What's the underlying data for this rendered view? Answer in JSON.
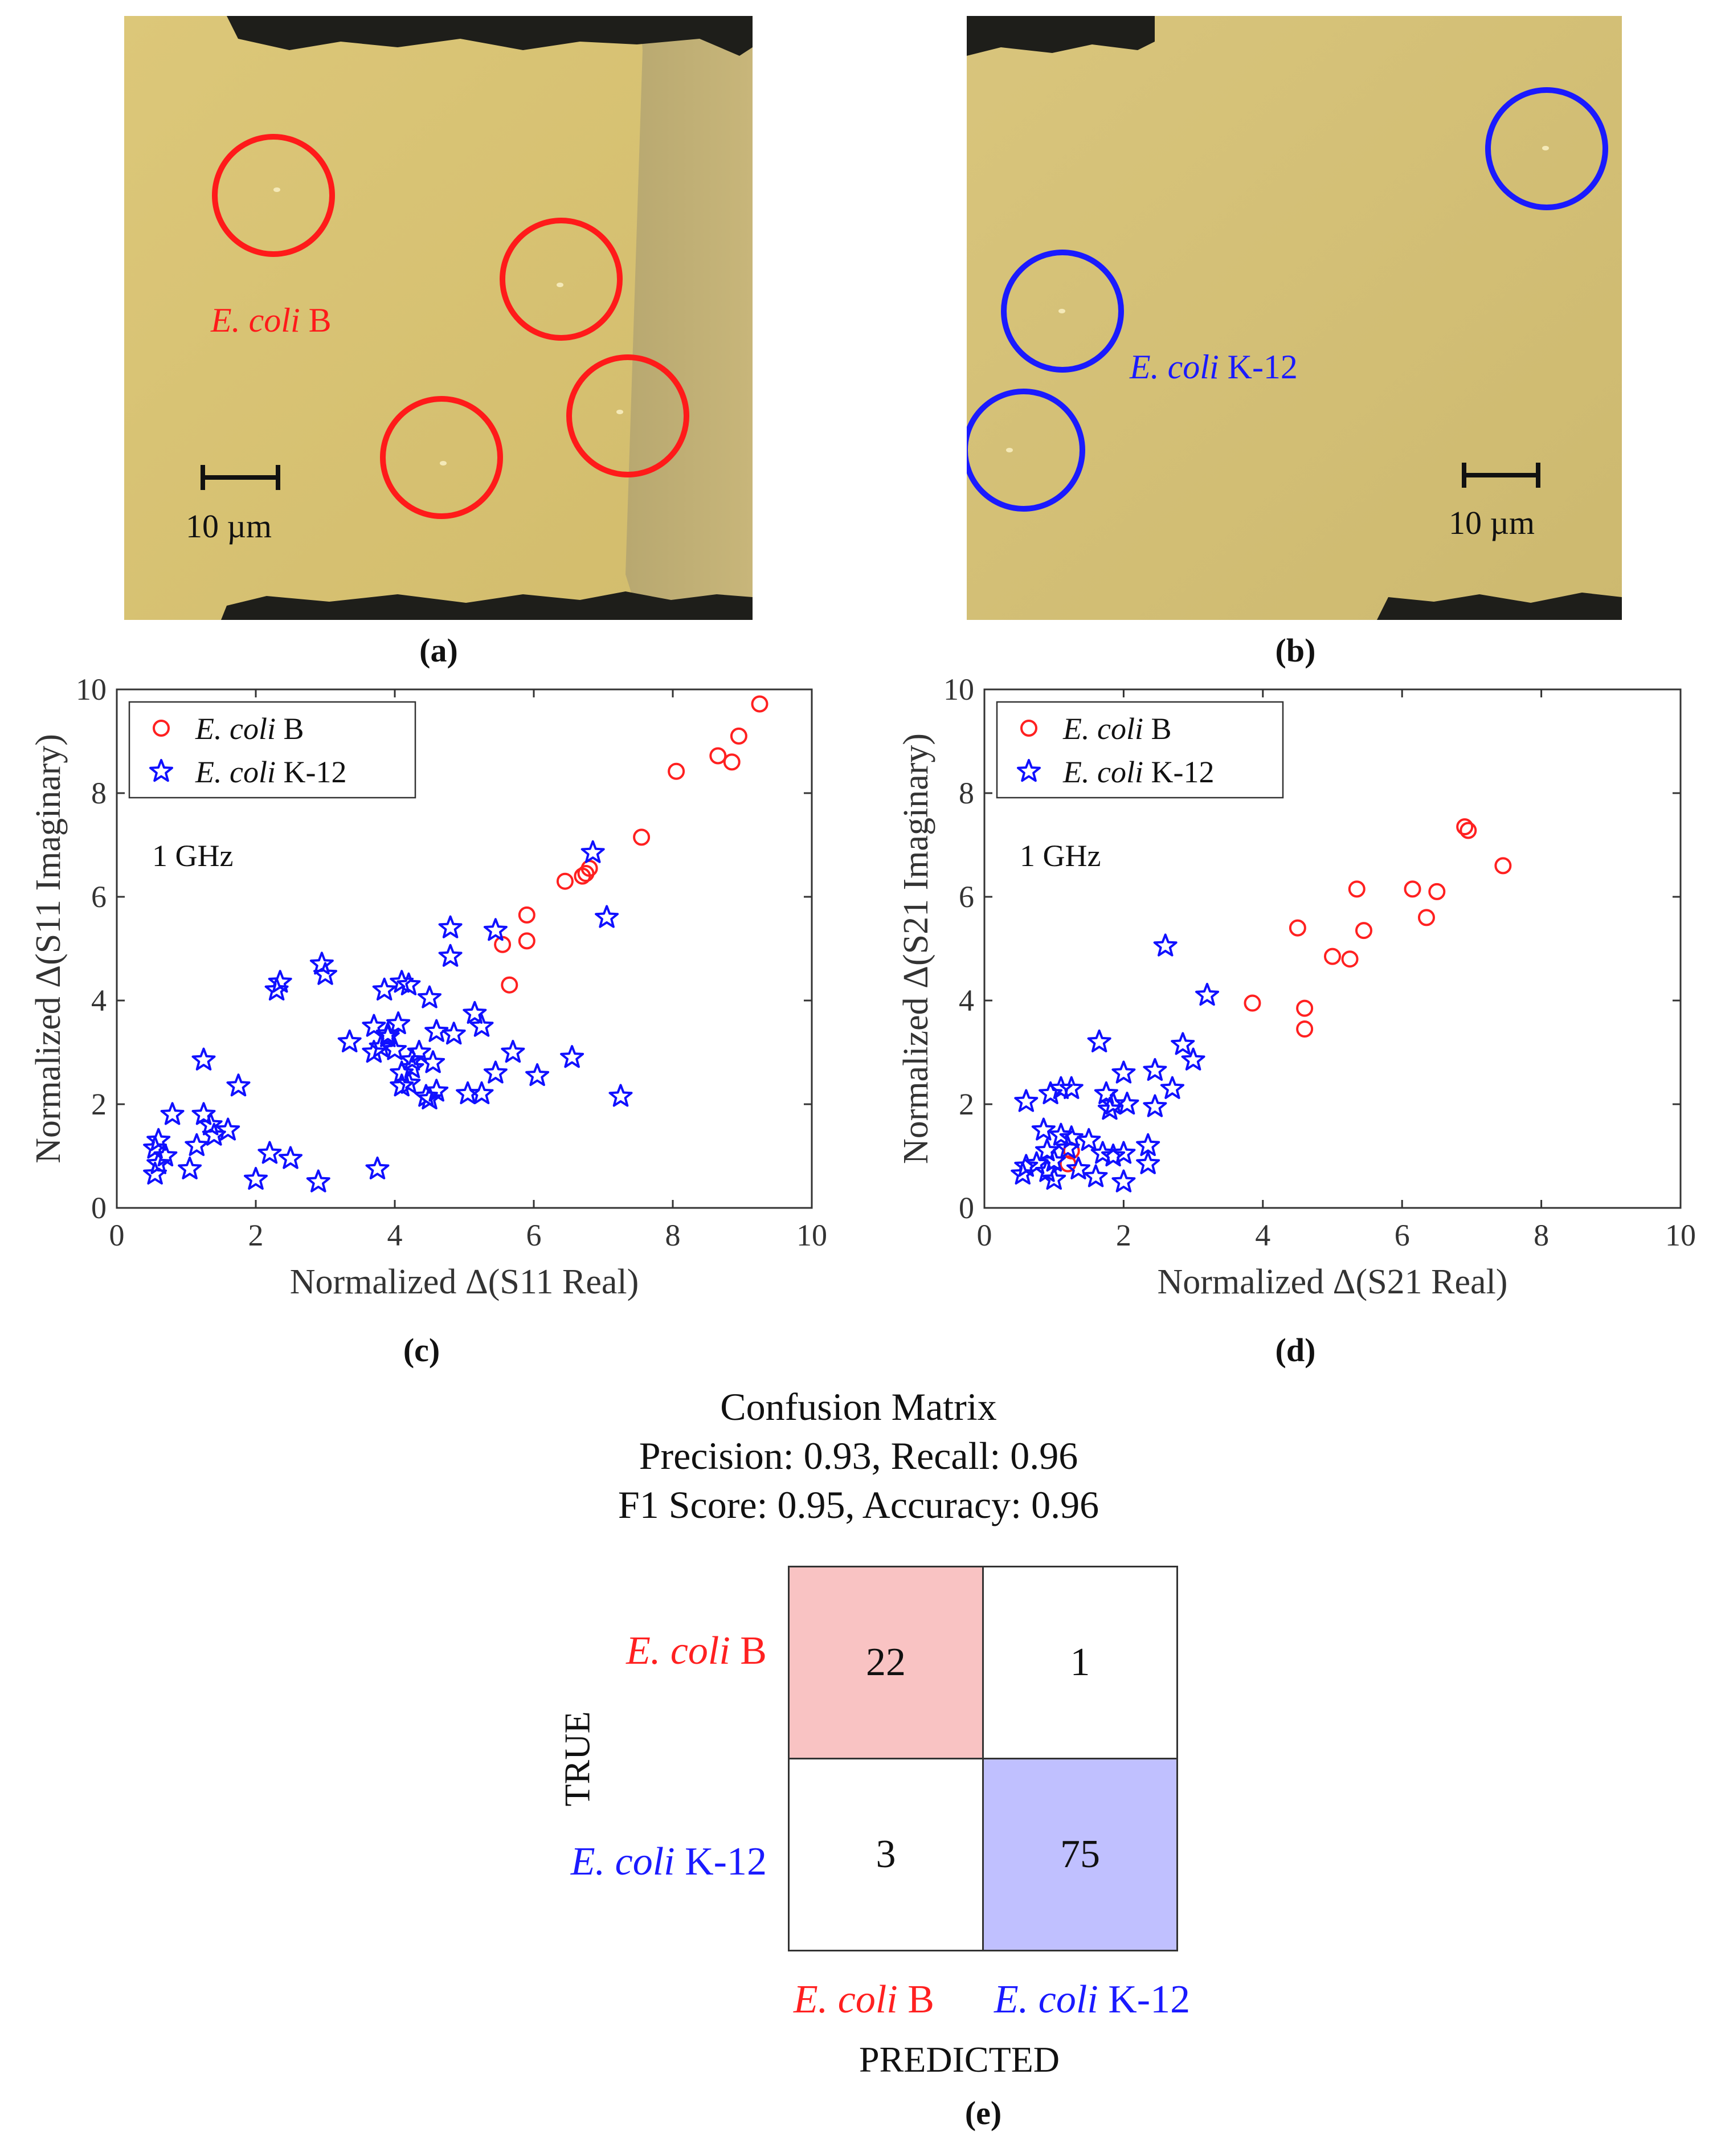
{
  "panels": {
    "a": {
      "caption": "(a)",
      "label_italic": "E. coli",
      "label_rest": " B",
      "scale_text": "10 µm",
      "circle_color": "#ff1a1a"
    },
    "b": {
      "caption": "(b)",
      "label_italic": "E. coli",
      "label_rest": " K-12",
      "scale_text": "10 µm",
      "circle_color": "#1a1aff"
    },
    "c": {
      "caption": "(c)"
    },
    "d": {
      "caption": "(d)"
    },
    "e": {
      "caption": "(e)"
    }
  },
  "chart_data": [
    {
      "id": "c",
      "type": "scatter",
      "xlabel": "Normalized Δ(S11 Real)",
      "ylabel": "Normalized Δ(S11 Imaginary)",
      "annotation": "1 GHz",
      "xlim": [
        0,
        10
      ],
      "ylim": [
        0,
        10
      ],
      "xticks": [
        0,
        2,
        4,
        6,
        8,
        10
      ],
      "yticks": [
        0,
        2,
        4,
        6,
        8,
        10
      ],
      "legend": {
        "position": "top-left",
        "entries": [
          {
            "italic": "E. coli",
            "rest": " B",
            "marker": "circle",
            "color": "#ff2020"
          },
          {
            "italic": "E. coli",
            "rest": " K-12",
            "marker": "star",
            "color": "#1010ff"
          }
        ]
      },
      "series": [
        {
          "name": "E. coli B",
          "marker": "circle",
          "color": "#ff2020",
          "points": [
            [
              9.25,
              9.72
            ],
            [
              8.95,
              9.1
            ],
            [
              8.85,
              8.6
            ],
            [
              8.65,
              8.72
            ],
            [
              8.05,
              8.42
            ],
            [
              7.55,
              7.15
            ],
            [
              6.8,
              6.55
            ],
            [
              6.75,
              6.45
            ],
            [
              6.7,
              6.4
            ],
            [
              6.45,
              6.3
            ],
            [
              5.9,
              5.65
            ],
            [
              5.9,
              5.15
            ],
            [
              5.55,
              5.08
            ],
            [
              5.65,
              4.3
            ]
          ]
        },
        {
          "name": "E. coli K-12",
          "marker": "star",
          "color": "#1010ff",
          "points": [
            [
              6.85,
              6.85
            ],
            [
              7.05,
              5.6
            ],
            [
              5.45,
              5.35
            ],
            [
              4.8,
              5.4
            ],
            [
              4.8,
              4.85
            ],
            [
              2.35,
              4.35
            ],
            [
              2.3,
              4.2
            ],
            [
              2.95,
              4.7
            ],
            [
              3.0,
              4.5
            ],
            [
              4.1,
              4.35
            ],
            [
              4.2,
              4.3
            ],
            [
              3.85,
              4.2
            ],
            [
              4.5,
              4.05
            ],
            [
              5.15,
              3.75
            ],
            [
              5.25,
              3.5
            ],
            [
              4.05,
              3.55
            ],
            [
              3.7,
              3.5
            ],
            [
              3.9,
              3.35
            ],
            [
              3.35,
              3.2
            ],
            [
              3.9,
              3.3
            ],
            [
              3.8,
              3.1
            ],
            [
              3.7,
              3.0
            ],
            [
              4.0,
              3.05
            ],
            [
              4.6,
              3.4
            ],
            [
              4.85,
              3.35
            ],
            [
              4.35,
              3.0
            ],
            [
              4.25,
              2.85
            ],
            [
              5.7,
              3.0
            ],
            [
              6.55,
              2.9
            ],
            [
              4.55,
              2.8
            ],
            [
              4.1,
              2.6
            ],
            [
              4.25,
              2.7
            ],
            [
              5.45,
              2.6
            ],
            [
              6.05,
              2.55
            ],
            [
              4.1,
              2.35
            ],
            [
              4.2,
              2.4
            ],
            [
              4.6,
              2.25
            ],
            [
              4.45,
              2.15
            ],
            [
              4.5,
              2.1
            ],
            [
              5.05,
              2.2
            ],
            [
              5.25,
              2.2
            ],
            [
              7.25,
              2.15
            ],
            [
              1.25,
              2.85
            ],
            [
              1.75,
              2.35
            ],
            [
              0.8,
              1.8
            ],
            [
              1.25,
              1.8
            ],
            [
              1.35,
              1.6
            ],
            [
              1.6,
              1.5
            ],
            [
              1.4,
              1.4
            ],
            [
              1.15,
              1.2
            ],
            [
              0.6,
              1.3
            ],
            [
              0.55,
              1.15
            ],
            [
              0.7,
              1.0
            ],
            [
              0.6,
              0.85
            ],
            [
              0.55,
              0.65
            ],
            [
              1.05,
              0.75
            ],
            [
              2.2,
              1.05
            ],
            [
              2.5,
              0.95
            ],
            [
              2.0,
              0.55
            ],
            [
              2.9,
              0.5
            ],
            [
              3.75,
              0.75
            ]
          ]
        }
      ]
    },
    {
      "id": "d",
      "type": "scatter",
      "xlabel": "Normalized Δ(S21 Real)",
      "ylabel": "Normalized Δ(S21 Imaginary)",
      "annotation": "1 GHz",
      "xlim": [
        0,
        10
      ],
      "ylim": [
        0,
        10
      ],
      "xticks": [
        0,
        2,
        4,
        6,
        8,
        10
      ],
      "yticks": [
        0,
        2,
        4,
        6,
        8,
        10
      ],
      "legend": {
        "position": "top-left",
        "entries": [
          {
            "italic": "E. coli",
            "rest": " B",
            "marker": "circle",
            "color": "#ff2020"
          },
          {
            "italic": "E. coli",
            "rest": " K-12",
            "marker": "star",
            "color": "#1010ff"
          }
        ]
      },
      "series": [
        {
          "name": "E. coli B",
          "marker": "circle",
          "color": "#ff2020",
          "points": [
            [
              6.9,
              7.35
            ],
            [
              6.95,
              7.28
            ],
            [
              7.45,
              6.6
            ],
            [
              5.35,
              6.15
            ],
            [
              6.15,
              6.15
            ],
            [
              6.5,
              6.1
            ],
            [
              6.35,
              5.6
            ],
            [
              4.5,
              5.4
            ],
            [
              5.45,
              5.35
            ],
            [
              5.0,
              4.85
            ],
            [
              5.25,
              4.8
            ],
            [
              3.85,
              3.95
            ],
            [
              4.6,
              3.85
            ],
            [
              4.6,
              3.45
            ],
            [
              1.25,
              1.1
            ],
            [
              1.2,
              0.85
            ]
          ]
        },
        {
          "name": "E. coli K-12",
          "marker": "star",
          "color": "#1010ff",
          "points": [
            [
              2.6,
              5.05
            ],
            [
              3.2,
              4.1
            ],
            [
              2.85,
              3.15
            ],
            [
              1.65,
              3.2
            ],
            [
              3.0,
              2.85
            ],
            [
              2.7,
              2.3
            ],
            [
              2.45,
              2.65
            ],
            [
              2.0,
              2.6
            ],
            [
              1.75,
              2.2
            ],
            [
              1.85,
              2.0
            ],
            [
              1.8,
              1.9
            ],
            [
              2.45,
              1.95
            ],
            [
              2.35,
              1.2
            ],
            [
              2.0,
              1.05
            ],
            [
              2.35,
              0.85
            ],
            [
              2.0,
              0.5
            ],
            [
              1.1,
              2.3
            ],
            [
              1.25,
              2.3
            ],
            [
              0.95,
              2.2
            ],
            [
              0.6,
              2.05
            ],
            [
              0.85,
              1.5
            ],
            [
              1.1,
              1.4
            ],
            [
              1.25,
              1.35
            ],
            [
              1.5,
              1.3
            ],
            [
              1.2,
              1.15
            ],
            [
              0.9,
              1.1
            ],
            [
              1.0,
              0.9
            ],
            [
              0.75,
              0.85
            ],
            [
              0.6,
              0.8
            ],
            [
              0.55,
              0.65
            ],
            [
              0.9,
              0.7
            ],
            [
              1.0,
              0.55
            ],
            [
              1.35,
              0.75
            ],
            [
              1.6,
              0.6
            ],
            [
              1.7,
              1.05
            ],
            [
              1.85,
              1.0
            ],
            [
              2.05,
              2.0
            ]
          ]
        }
      ]
    },
    {
      "id": "e",
      "type": "table",
      "title_lines": [
        "Confusion Matrix",
        "Precision: 0.93, Recall: 0.96",
        "F1 Score: 0.95, Accuracy: 0.96"
      ],
      "row_axis_label": "TRUE",
      "col_axis_label": "PREDICTED",
      "row_labels": [
        {
          "italic": "E. coli",
          "rest": " B",
          "color": "#ff2020"
        },
        {
          "italic": "E. coli",
          "rest": " K-12",
          "color": "#1a1aff"
        }
      ],
      "col_labels": [
        {
          "italic": "E. coli",
          "rest": " B",
          "color": "#ff2020"
        },
        {
          "italic": "E. coli",
          "rest": " K-12",
          "color": "#1a1aff"
        }
      ],
      "matrix": [
        [
          22,
          1
        ],
        [
          3,
          75
        ]
      ],
      "cell_colors": [
        [
          "#f9c3c3",
          "#ffffff"
        ],
        [
          "#ffffff",
          "#c0c0ff"
        ]
      ]
    }
  ]
}
